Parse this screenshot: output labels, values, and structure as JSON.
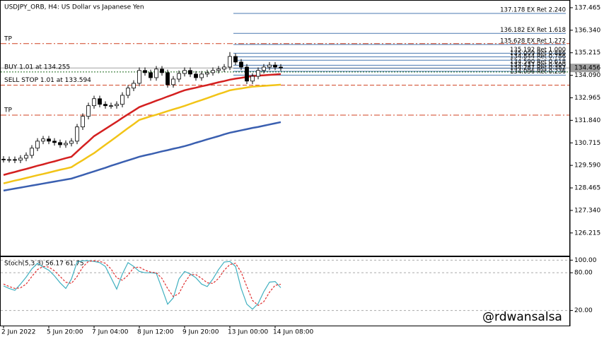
{
  "chart_data": [
    {
      "type": "candlestick",
      "title": "USDJPY_ORB, H4:  US Dollar vs Japanese Yen",
      "categories": [
        "2 Jun 2022",
        null,
        null,
        null,
        null,
        null,
        null,
        null,
        "5 Jun 20:00",
        null,
        null,
        null,
        null,
        null,
        null,
        null,
        "7 Jun 04:00",
        null,
        null,
        null,
        null,
        null,
        null,
        null,
        "8 Jun 12:00",
        null,
        null,
        null,
        null,
        null,
        null,
        null,
        "9 Jun 20:00",
        null,
        null,
        null,
        null,
        null,
        null,
        null,
        "13 Jun 00:00",
        null,
        null,
        null,
        null,
        null,
        null,
        null,
        "14 Jun 08:00",
        null
      ],
      "open": [
        129.9,
        129.88,
        129.88,
        129.85,
        129.95,
        130.09,
        130.45,
        130.8,
        130.91,
        130.8,
        130.73,
        130.62,
        130.69,
        130.8,
        131.51,
        132.04,
        132.57,
        132.92,
        132.64,
        132.57,
        132.57,
        132.64,
        133.09,
        133.45,
        133.69,
        134.33,
        134.22,
        133.97,
        134.4,
        134.22,
        133.62,
        133.9,
        134.18,
        134.33,
        134.15,
        133.97,
        134.15,
        134.22,
        134.33,
        134.4,
        134.5,
        135.03,
        134.75,
        134.5,
        133.8,
        134.04,
        134.33,
        134.5,
        134.6,
        134.5
      ],
      "high": [
        130.05,
        130.03,
        130.03,
        130.1,
        130.24,
        130.6,
        130.95,
        131.06,
        131.06,
        130.95,
        130.88,
        130.84,
        130.95,
        131.66,
        132.19,
        132.72,
        133.07,
        133.07,
        132.79,
        132.72,
        132.79,
        133.24,
        133.6,
        133.84,
        134.48,
        134.48,
        134.37,
        134.55,
        134.55,
        134.37,
        134.05,
        134.33,
        134.48,
        134.48,
        134.3,
        134.3,
        134.37,
        134.48,
        134.55,
        134.65,
        135.25,
        135.18,
        134.9,
        134.65,
        134.19,
        134.48,
        134.65,
        134.75,
        134.75,
        134.65
      ],
      "low": [
        129.73,
        129.73,
        129.7,
        129.7,
        129.8,
        129.94,
        130.3,
        130.65,
        130.65,
        130.58,
        130.47,
        130.47,
        130.54,
        130.65,
        131.36,
        131.89,
        132.42,
        132.49,
        132.42,
        132.42,
        132.42,
        132.49,
        132.94,
        133.3,
        133.54,
        134.07,
        133.82,
        133.82,
        134.07,
        133.47,
        133.47,
        133.75,
        134.03,
        134.0,
        133.82,
        133.82,
        134.0,
        134.07,
        134.18,
        134.25,
        134.35,
        134.6,
        134.35,
        133.65,
        133.65,
        133.89,
        134.18,
        134.35,
        134.35,
        134.31
      ],
      "close": [
        129.88,
        129.88,
        129.85,
        129.95,
        130.09,
        130.45,
        130.8,
        130.91,
        130.8,
        130.73,
        130.62,
        130.69,
        130.8,
        131.51,
        132.04,
        132.57,
        132.92,
        132.64,
        132.57,
        132.57,
        132.64,
        133.09,
        133.45,
        133.69,
        134.33,
        134.22,
        133.97,
        134.4,
        134.22,
        133.62,
        133.9,
        134.18,
        134.33,
        134.15,
        133.97,
        134.15,
        134.22,
        134.33,
        134.4,
        134.5,
        135.03,
        134.75,
        134.5,
        133.8,
        134.04,
        134.33,
        134.5,
        134.6,
        134.5,
        134.46
      ],
      "overlays": [
        {
          "color": "#d42020",
          "values": [
            129.11,
            129.19,
            129.26,
            129.34,
            129.41,
            129.49,
            129.57,
            129.64,
            129.72,
            129.79,
            129.87,
            129.95,
            130.02,
            130.28,
            130.54,
            130.79,
            131.05,
            131.23,
            131.41,
            131.59,
            131.77,
            131.96,
            132.14,
            132.32,
            132.5,
            132.61,
            132.71,
            132.82,
            132.92,
            133.03,
            133.13,
            133.24,
            133.34,
            133.41,
            133.47,
            133.54,
            133.6,
            133.67,
            133.74,
            133.8,
            133.87,
            133.92,
            133.96,
            134.01,
            134.05,
            134.07,
            134.09,
            134.11,
            134.13,
            134.15
          ]
        },
        {
          "color": "#f2c417",
          "values": [
            128.69,
            128.76,
            128.83,
            128.89,
            128.96,
            129.03,
            129.1,
            129.16,
            129.23,
            129.3,
            129.37,
            129.43,
            129.5,
            129.68,
            129.85,
            130.03,
            130.2,
            130.41,
            130.62,
            130.82,
            131.03,
            131.24,
            131.45,
            131.65,
            131.86,
            131.95,
            132.04,
            132.12,
            132.21,
            132.3,
            132.39,
            132.47,
            132.56,
            132.66,
            132.76,
            132.85,
            132.95,
            133.05,
            133.15,
            133.24,
            133.34,
            133.39,
            133.43,
            133.48,
            133.52,
            133.54,
            133.56,
            133.58,
            133.6,
            133.62
          ]
        },
        {
          "color": "#3a5fb0",
          "values": [
            128.33,
            128.38,
            128.43,
            128.48,
            128.53,
            128.58,
            128.63,
            128.68,
            128.73,
            128.78,
            128.83,
            128.88,
            128.93,
            129.02,
            129.11,
            129.2,
            129.29,
            129.38,
            129.47,
            129.57,
            129.66,
            129.75,
            129.84,
            129.93,
            130.02,
            130.09,
            130.15,
            130.22,
            130.29,
            130.35,
            130.42,
            130.48,
            130.55,
            130.63,
            130.72,
            130.8,
            130.89,
            130.97,
            131.05,
            131.14,
            131.22,
            131.28,
            131.34,
            131.4,
            131.46,
            131.51,
            131.57,
            131.63,
            131.69,
            131.75
          ]
        }
      ],
      "orders": [
        {
          "label": "TP",
          "value": 135.67,
          "color": "#d04020",
          "style": "dashdot"
        },
        {
          "label": "BUY 1.01 at 134.255",
          "value": 134.255,
          "color": "#1a6a1a",
          "style": "dotted"
        },
        {
          "label": "SELL STOP 1.01 at 133.594",
          "value": 133.594,
          "color": "#d04020",
          "style": "dashed"
        },
        {
          "label": "TP",
          "value": 132.1,
          "color": "#d04020",
          "style": "dashdot"
        }
      ],
      "fib_levels": [
        {
          "value": 137.178,
          "label": "137.178 EX Ret 2.240"
        },
        {
          "value": 136.182,
          "label": "136.182 EX Ret 1.618"
        },
        {
          "value": 135.628,
          "label": "135.628 EX Ret 1.272"
        },
        {
          "value": 135.192,
          "label": "135.192 Ret 1.000"
        },
        {
          "value": 135.009,
          "label": "135.009 Ret 0.886"
        },
        {
          "value": 134.844,
          "label": "134.844 Ret 0.786"
        },
        {
          "value": 134.59,
          "label": "134.590 Ret 0.618"
        },
        {
          "value": 134.437,
          "label": "134.437 Ret 0.500"
        },
        {
          "value": 134.287,
          "label": "134.287 Ret 0.382"
        },
        {
          "value": 134.096,
          "label": "134.096 Ret 0.236"
        }
      ],
      "fib_color": "#4a78b0",
      "current_price": 134.456,
      "ylim": [
        125.08,
        137.85
      ],
      "yticks": [
        137.465,
        {
          "value": 136.34,
          "label": "136.340"
        },
        135.215,
        {
          "value": 134.09,
          "label": "134.090"
        },
        132.965,
        {
          "value": 131.84,
          "label": "131.840"
        },
        130.715,
        {
          "value": 129.59,
          "label": "129.590"
        },
        128.465,
        {
          "value": 127.34,
          "label": "127.340"
        },
        126.215
      ]
    },
    {
      "type": "line",
      "label": "Stoch(5,3,3) 56.17 61.75",
      "series": [
        {
          "color": "#40b0c0",
          "dash": false,
          "values": [
            59,
            55,
            52,
            62,
            73,
            86,
            95,
            89,
            84,
            75,
            64,
            55,
            70,
            97,
            99,
            99,
            98,
            96,
            90,
            72,
            54,
            78,
            96,
            90,
            82,
            80,
            80,
            79,
            55,
            30,
            40,
            70,
            82,
            78,
            72,
            62,
            58,
            70,
            85,
            97,
            98,
            90,
            55,
            30,
            22,
            31,
            50,
            65,
            66,
            56.17
          ]
        },
        {
          "color": "#e03030",
          "dash": true,
          "values": [
            62,
            58,
            55,
            56,
            62,
            74,
            85,
            90,
            89,
            83,
            74,
            65,
            63,
            74,
            89,
            98,
            99,
            98,
            95,
            86,
            72,
            68,
            76,
            88,
            89,
            84,
            81,
            80,
            71,
            55,
            42,
            47,
            64,
            77,
            77,
            71,
            64,
            63,
            71,
            84,
            93,
            95,
            81,
            58,
            36,
            28,
            34,
            49,
            60,
            61.75
          ]
        }
      ],
      "ylim": [
        -4,
        106
      ],
      "yticks": [
        {
          "value": 100,
          "label": "100.00"
        },
        {
          "value": 80,
          "label": "80.00"
        },
        {
          "value": 20,
          "label": "20.00"
        }
      ],
      "grid": true
    }
  ],
  "watermark": "@rdwansalsa"
}
